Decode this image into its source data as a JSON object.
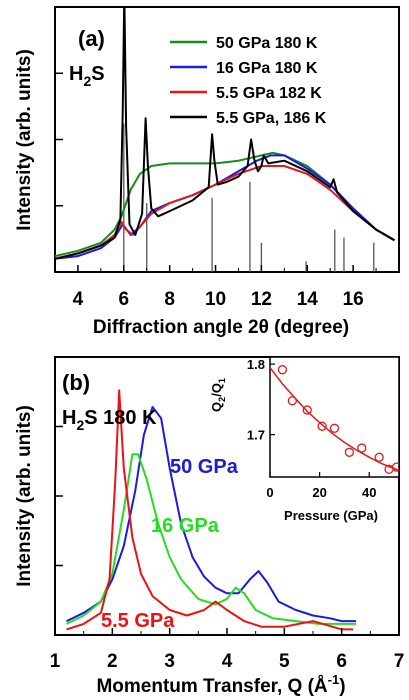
{
  "chart_data": [
    {
      "type": "line",
      "panel_label": "(a)",
      "sample_label": "H",
      "sample_sub": "2",
      "sample_tail": "S",
      "xlabel": "Diffraction angle 2θ (degree)",
      "ylabel": "Intensity (arb. units)",
      "xlim": [
        3,
        18
      ],
      "x_ticks": [
        4,
        6,
        8,
        10,
        12,
        14,
        16
      ],
      "legend_position": "top-right",
      "series": [
        {
          "name": "50 GPa 180 K",
          "color": "#1a8a1a",
          "x": [
            3,
            4,
            5,
            5.6,
            5.9,
            6.3,
            6.7,
            7.2,
            8,
            9,
            10,
            11,
            12,
            12.5,
            13,
            14,
            15,
            16,
            17,
            17.8
          ],
          "y": [
            0.06,
            0.08,
            0.11,
            0.16,
            0.21,
            0.31,
            0.37,
            0.4,
            0.41,
            0.41,
            0.41,
            0.42,
            0.44,
            0.45,
            0.44,
            0.4,
            0.33,
            0.24,
            0.16,
            0.12
          ]
        },
        {
          "name": "16 GPa 180 K",
          "color": "#1a1ae0",
          "x": [
            3,
            4,
            5,
            5.6,
            5.95,
            6.3,
            6.7,
            7.2,
            8,
            9,
            10,
            11,
            11.8,
            12.4,
            13,
            14,
            15,
            16,
            17,
            17.8
          ],
          "y": [
            0.05,
            0.06,
            0.09,
            0.13,
            0.18,
            0.14,
            0.17,
            0.23,
            0.26,
            0.29,
            0.33,
            0.38,
            0.42,
            0.44,
            0.44,
            0.39,
            0.33,
            0.24,
            0.16,
            0.12
          ]
        },
        {
          "name": "5.5 GPa 182 K",
          "color": "#e01a1a",
          "x": [
            3,
            4,
            5,
            5.6,
            5.9,
            6.1,
            6.4,
            6.8,
            7.2,
            8,
            9,
            10,
            11,
            12,
            13,
            14,
            15,
            16,
            17,
            17.8
          ],
          "y": [
            0.05,
            0.07,
            0.1,
            0.14,
            0.19,
            0.16,
            0.14,
            0.18,
            0.22,
            0.26,
            0.29,
            0.33,
            0.37,
            0.4,
            0.4,
            0.37,
            0.31,
            0.23,
            0.16,
            0.12
          ]
        },
        {
          "name": "5.5 GPa, 186 K",
          "color": "#000000",
          "x": [
            3,
            4,
            5,
            5.6,
            5.85,
            5.95,
            6.02,
            6.1,
            6.25,
            6.5,
            6.8,
            6.95,
            7.05,
            7.2,
            7.5,
            8,
            9,
            9.7,
            9.85,
            9.95,
            10.1,
            10.5,
            11,
            11.4,
            11.55,
            11.7,
            11.85,
            12,
            12.1,
            12.3,
            13,
            14,
            15,
            15.15,
            15.3,
            16,
            17,
            17.8
          ],
          "y": [
            0.05,
            0.07,
            0.1,
            0.13,
            0.2,
            0.6,
            1.05,
            0.55,
            0.18,
            0.14,
            0.22,
            0.58,
            0.4,
            0.24,
            0.21,
            0.23,
            0.27,
            0.32,
            0.52,
            0.42,
            0.33,
            0.34,
            0.36,
            0.4,
            0.5,
            0.42,
            0.38,
            0.4,
            0.44,
            0.41,
            0.42,
            0.38,
            0.32,
            0.35,
            0.3,
            0.23,
            0.16,
            0.12
          ]
        }
      ],
      "reference_lines": {
        "color": "#555555",
        "x": [
          6.0,
          7.0,
          9.85,
          11.5,
          12.0,
          13.95,
          15.2,
          15.6,
          16.9
        ],
        "height": [
          0.56,
          0.26,
          0.28,
          0.34,
          0.11,
          0.04,
          0.16,
          0.13,
          0.11
        ]
      }
    },
    {
      "type": "line",
      "panel_label": "(b)",
      "sample_label": "H",
      "sample_sub": "2",
      "sample_tail": "S 180 K",
      "xlabel": "Momentum Transfer, Q (Å",
      "xlabel_sup": "-1",
      "xlabel_tail": ")",
      "ylabel": "Intensity (arb. units)",
      "xlim": [
        1,
        7
      ],
      "x_ticks": [
        1,
        2,
        3,
        4,
        5,
        6,
        7
      ],
      "series": [
        {
          "name": "50 GPa",
          "label": "50 GPa",
          "color": "#1a1ae0",
          "x": [
            1.2,
            1.5,
            1.8,
            2.0,
            2.2,
            2.4,
            2.55,
            2.7,
            2.85,
            3.0,
            3.2,
            3.4,
            3.6,
            3.8,
            4.0,
            4.2,
            4.4,
            4.55,
            4.7,
            4.9,
            5.2,
            5.5,
            5.8,
            6.0,
            6.25
          ],
          "y": [
            0.05,
            0.08,
            0.12,
            0.2,
            0.32,
            0.52,
            0.72,
            0.82,
            0.78,
            0.6,
            0.4,
            0.28,
            0.21,
            0.17,
            0.15,
            0.15,
            0.2,
            0.23,
            0.19,
            0.12,
            0.09,
            0.07,
            0.06,
            0.05,
            0.05
          ]
        },
        {
          "name": "16 GPa",
          "label": "16 GPa",
          "color": "#22dd22",
          "x": [
            1.2,
            1.5,
            1.8,
            2.0,
            2.2,
            2.35,
            2.45,
            2.6,
            2.8,
            3.0,
            3.2,
            3.5,
            3.8,
            4.0,
            4.15,
            4.3,
            4.5,
            4.8,
            5.2,
            5.6,
            6.0,
            6.25
          ],
          "y": [
            0.04,
            0.07,
            0.12,
            0.22,
            0.45,
            0.65,
            0.65,
            0.56,
            0.4,
            0.28,
            0.2,
            0.13,
            0.11,
            0.13,
            0.17,
            0.15,
            0.09,
            0.06,
            0.05,
            0.04,
            0.04,
            0.04
          ]
        },
        {
          "name": "5.5 GPa",
          "label": "5.5 GPa",
          "color": "#ee1111",
          "x": [
            1.2,
            1.5,
            1.8,
            1.95,
            2.05,
            2.12,
            2.2,
            2.35,
            2.5,
            2.7,
            3.0,
            3.3,
            3.6,
            3.8,
            4.0,
            4.3,
            4.6,
            5.0,
            5.5,
            6.0,
            6.2
          ],
          "y": [
            0.02,
            0.04,
            0.08,
            0.2,
            0.55,
            0.88,
            0.6,
            0.35,
            0.22,
            0.14,
            0.09,
            0.07,
            0.09,
            0.12,
            0.09,
            0.05,
            0.03,
            0.03,
            0.05,
            0.02,
            0.02
          ]
        }
      ],
      "inset": {
        "ylabel": "Q",
        "ylabel_sub": "2",
        "ylabel_mid": "/Q",
        "ylabel_sub2": "1",
        "xlabel": "Pressure (GPa)",
        "xlim": [
          0,
          52
        ],
        "ylim": [
          1.64,
          1.81
        ],
        "x_ticks": [
          0,
          20,
          40
        ],
        "y_ticks": [
          1.7,
          1.8
        ],
        "color": "#e01a1a",
        "points": {
          "x": [
            5,
            9,
            15,
            21,
            26,
            32,
            37,
            44,
            48,
            51
          ],
          "y": [
            1.792,
            1.748,
            1.735,
            1.712,
            1.709,
            1.675,
            1.681,
            1.668,
            1.651,
            1.654
          ]
        },
        "fit": {
          "x": [
            0,
            5,
            10,
            15,
            20,
            25,
            30,
            35,
            40,
            45,
            50,
            52
          ],
          "y": [
            1.795,
            1.772,
            1.752,
            1.733,
            1.717,
            1.702,
            1.689,
            1.678,
            1.668,
            1.659,
            1.652,
            1.649
          ]
        }
      }
    }
  ]
}
